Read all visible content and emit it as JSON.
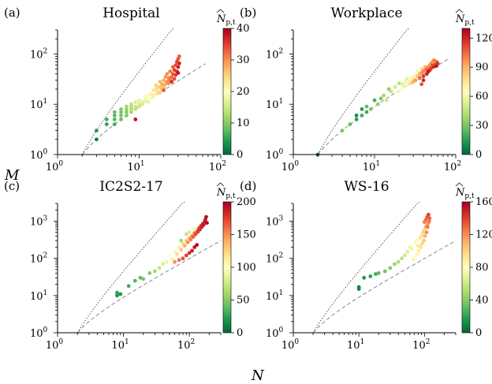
{
  "figure": {
    "xlabel": "N",
    "ylabel": "M",
    "colorbar_label_main": "N",
    "colorbar_label_sub": "p,t"
  },
  "chart_data": [
    {
      "type": "scatter",
      "panel": "(a)",
      "title": "Hospital",
      "xscale": "log",
      "yscale": "log",
      "xlim": [
        1,
        100
      ],
      "ylim": [
        1,
        300
      ],
      "xticks": [
        {
          "base": "10",
          "exp": "0"
        },
        {
          "base": "10",
          "exp": "1"
        },
        {
          "base": "10",
          "exp": "2"
        }
      ],
      "yticks": [
        {
          "base": "10",
          "exp": "0"
        },
        {
          "base": "10",
          "exp": "1"
        },
        {
          "base": "10",
          "exp": "2"
        }
      ],
      "colorbar": {
        "min": 0,
        "max": 40,
        "ticks": [
          "0",
          "10",
          "20",
          "30",
          "40"
        ]
      },
      "reference_lines": [
        {
          "style": "dotted",
          "description": "complete graph M = N(N-1)/2",
          "x_range": [
            2,
            27
          ]
        },
        {
          "style": "dashed",
          "description": "tree M = N-1",
          "x_range": [
            2,
            65
          ]
        }
      ],
      "points": [
        [
          3,
          2,
          2
        ],
        [
          3,
          3,
          4
        ],
        [
          4,
          4,
          5
        ],
        [
          4,
          5,
          6
        ],
        [
          5,
          4,
          6
        ],
        [
          5,
          5,
          7
        ],
        [
          5,
          6,
          7
        ],
        [
          5,
          7,
          8
        ],
        [
          6,
          5,
          8
        ],
        [
          6,
          6,
          9
        ],
        [
          6,
          7,
          9
        ],
        [
          6,
          8,
          10
        ],
        [
          7,
          6,
          10
        ],
        [
          7,
          7,
          10
        ],
        [
          7,
          8,
          11
        ],
        [
          7,
          9,
          12
        ],
        [
          8,
          7,
          12
        ],
        [
          8,
          8,
          13
        ],
        [
          8,
          9,
          13
        ],
        [
          8,
          10,
          14
        ],
        [
          9,
          5,
          38
        ],
        [
          9,
          8,
          14
        ],
        [
          9,
          9,
          15
        ],
        [
          9,
          11,
          16
        ],
        [
          10,
          9,
          15
        ],
        [
          10,
          10,
          16
        ],
        [
          10,
          12,
          17
        ],
        [
          11,
          10,
          16
        ],
        [
          11,
          11,
          17
        ],
        [
          12,
          12,
          18
        ],
        [
          12,
          14,
          19
        ],
        [
          13,
          11,
          18
        ],
        [
          13,
          13,
          20
        ],
        [
          13,
          15,
          20
        ],
        [
          14,
          14,
          20
        ],
        [
          14,
          16,
          22
        ],
        [
          15,
          15,
          22
        ],
        [
          15,
          19,
          23
        ],
        [
          16,
          16,
          22
        ],
        [
          16,
          20,
          24
        ],
        [
          16,
          24,
          25
        ],
        [
          17,
          18,
          24
        ],
        [
          17,
          22,
          25
        ],
        [
          18,
          17,
          25
        ],
        [
          18,
          22,
          26
        ],
        [
          18,
          28,
          27
        ],
        [
          19,
          20,
          26
        ],
        [
          19,
          25,
          28
        ],
        [
          20,
          22,
          27
        ],
        [
          20,
          30,
          28
        ],
        [
          20,
          19,
          33
        ],
        [
          21,
          25,
          28
        ],
        [
          21,
          35,
          29
        ],
        [
          22,
          28,
          30
        ],
        [
          22,
          40,
          30
        ],
        [
          23,
          26,
          30
        ],
        [
          23,
          33,
          31
        ],
        [
          24,
          30,
          31
        ],
        [
          24,
          45,
          32
        ],
        [
          25,
          35,
          32
        ],
        [
          25,
          28,
          36
        ],
        [
          26,
          40,
          33
        ],
        [
          26,
          55,
          33
        ],
        [
          27,
          32,
          34
        ],
        [
          27,
          48,
          35
        ],
        [
          28,
          38,
          35
        ],
        [
          28,
          60,
          34
        ],
        [
          29,
          45,
          36
        ],
        [
          29,
          70,
          35
        ],
        [
          30,
          55,
          37
        ],
        [
          30,
          80,
          34
        ],
        [
          30,
          42,
          38
        ],
        [
          31,
          65,
          37
        ],
        [
          31,
          90,
          33
        ]
      ]
    },
    {
      "type": "scatter",
      "panel": "(b)",
      "title": "Workplace",
      "xscale": "log",
      "yscale": "log",
      "xlim": [
        1,
        100
      ],
      "ylim": [
        1,
        300
      ],
      "xticks": [
        {
          "base": "10",
          "exp": "0"
        },
        {
          "base": "10",
          "exp": "1"
        },
        {
          "base": "10",
          "exp": "2"
        }
      ],
      "yticks": [
        {
          "base": "10",
          "exp": "0"
        },
        {
          "base": "10",
          "exp": "1"
        },
        {
          "base": "10",
          "exp": "2"
        }
      ],
      "colorbar": {
        "min": 0,
        "max": 130,
        "ticks": [
          "0",
          "30",
          "60",
          "90",
          "120"
        ]
      },
      "reference_lines": [
        {
          "style": "dotted",
          "description": "complete graph M = N(N-1)/2",
          "x_range": [
            2,
            27
          ]
        },
        {
          "style": "dashed",
          "description": "tree M = N-1",
          "x_range": [
            2,
            80
          ]
        }
      ],
      "points": [
        [
          2,
          1,
          5
        ],
        [
          4,
          3,
          30
        ],
        [
          5,
          4,
          25
        ],
        [
          6,
          5,
          15
        ],
        [
          6,
          6,
          10
        ],
        [
          7,
          6,
          20
        ],
        [
          7,
          8,
          15
        ],
        [
          8,
          7,
          20
        ],
        [
          8,
          9,
          25
        ],
        [
          9,
          8,
          30
        ],
        [
          10,
          12,
          20
        ],
        [
          11,
          10,
          35
        ],
        [
          12,
          13,
          30
        ],
        [
          13,
          15,
          40
        ],
        [
          14,
          12,
          50
        ],
        [
          15,
          20,
          35
        ],
        [
          16,
          18,
          45
        ],
        [
          18,
          22,
          50
        ],
        [
          20,
          18,
          60
        ],
        [
          20,
          26,
          45
        ],
        [
          22,
          25,
          55
        ],
        [
          22,
          21,
          65
        ],
        [
          24,
          28,
          60
        ],
        [
          25,
          24,
          70
        ],
        [
          25,
          32,
          55
        ],
        [
          27,
          30,
          70
        ],
        [
          28,
          26,
          80
        ],
        [
          28,
          35,
          65
        ],
        [
          30,
          33,
          75
        ],
        [
          30,
          28,
          90
        ],
        [
          32,
          38,
          70
        ],
        [
          32,
          30,
          95
        ],
        [
          34,
          36,
          85
        ],
        [
          34,
          45,
          70
        ],
        [
          36,
          40,
          90
        ],
        [
          36,
          33,
          105
        ],
        [
          38,
          42,
          95
        ],
        [
          38,
          50,
          80
        ],
        [
          40,
          45,
          100
        ],
        [
          40,
          36,
          115
        ],
        [
          42,
          48,
          100
        ],
        [
          42,
          55,
          90
        ],
        [
          44,
          50,
          105
        ],
        [
          44,
          40,
          120
        ],
        [
          46,
          55,
          100
        ],
        [
          46,
          45,
          125
        ],
        [
          48,
          60,
          95
        ],
        [
          48,
          48,
          120
        ],
        [
          50,
          65,
          100
        ],
        [
          50,
          52,
          115
        ],
        [
          52,
          60,
          110
        ],
        [
          52,
          70,
          95
        ],
        [
          54,
          56,
          120
        ],
        [
          54,
          75,
          100
        ],
        [
          56,
          62,
          110
        ],
        [
          58,
          70,
          105
        ],
        [
          58,
          58,
          125
        ],
        [
          60,
          65,
          115
        ],
        [
          38,
          25,
          110
        ],
        [
          40,
          30,
          120
        ]
      ]
    },
    {
      "type": "scatter",
      "panel": "(c)",
      "title": "IC2S2-17",
      "xscale": "log",
      "yscale": "log",
      "xlim": [
        1,
        300
      ],
      "ylim": [
        1,
        3000
      ],
      "xticks": [
        {
          "base": "10",
          "exp": "0"
        },
        {
          "base": "10",
          "exp": "1"
        },
        {
          "base": "10",
          "exp": "2"
        }
      ],
      "yticks": [
        {
          "base": "10",
          "exp": "0"
        },
        {
          "base": "10",
          "exp": "1"
        },
        {
          "base": "10",
          "exp": "2"
        },
        {
          "base": "10",
          "exp": "3"
        }
      ],
      "colorbar": {
        "min": 0,
        "max": 200,
        "ticks": [
          "0",
          "50",
          "100",
          "150",
          "200"
        ]
      },
      "reference_lines": [
        {
          "style": "dotted",
          "description": "complete graph M = N(N-1)/2",
          "x_range": [
            2,
            85
          ]
        },
        {
          "style": "dashed",
          "description": "tree M = N-1",
          "x_range": [
            2,
            300
          ]
        }
      ],
      "points": [
        [
          8,
          10,
          20
        ],
        [
          8,
          12,
          25
        ],
        [
          9,
          11,
          20
        ],
        [
          12,
          18,
          30
        ],
        [
          15,
          25,
          35
        ],
        [
          18,
          30,
          40
        ],
        [
          20,
          28,
          45
        ],
        [
          25,
          40,
          50
        ],
        [
          30,
          45,
          60
        ],
        [
          35,
          55,
          70
        ],
        [
          40,
          70,
          80
        ],
        [
          45,
          80,
          90
        ],
        [
          50,
          120,
          100
        ],
        [
          55,
          95,
          110
        ],
        [
          60,
          150,
          105
        ],
        [
          65,
          130,
          120
        ],
        [
          70,
          200,
          110
        ],
        [
          75,
          170,
          130
        ],
        [
          80,
          250,
          120
        ],
        [
          85,
          220,
          140
        ],
        [
          90,
          300,
          130
        ],
        [
          95,
          270,
          150
        ],
        [
          100,
          350,
          140
        ],
        [
          105,
          320,
          155
        ],
        [
          110,
          400,
          150
        ],
        [
          115,
          380,
          165
        ],
        [
          120,
          480,
          155
        ],
        [
          125,
          450,
          170
        ],
        [
          130,
          550,
          165
        ],
        [
          135,
          520,
          175
        ],
        [
          140,
          650,
          170
        ],
        [
          145,
          600,
          180
        ],
        [
          150,
          750,
          175
        ],
        [
          155,
          700,
          185
        ],
        [
          160,
          850,
          180
        ],
        [
          165,
          800,
          190
        ],
        [
          170,
          950,
          185
        ],
        [
          175,
          1100,
          190
        ],
        [
          180,
          1300,
          195
        ],
        [
          185,
          900,
          195
        ],
        [
          60,
          80,
          150
        ],
        [
          70,
          90,
          160
        ],
        [
          80,
          100,
          170
        ],
        [
          90,
          120,
          175
        ],
        [
          100,
          140,
          180
        ],
        [
          110,
          160,
          185
        ],
        [
          120,
          200,
          190
        ],
        [
          130,
          230,
          195
        ],
        [
          75,
          300,
          60
        ],
        [
          90,
          450,
          70
        ],
        [
          100,
          500,
          80
        ],
        [
          120,
          600,
          90
        ]
      ]
    },
    {
      "type": "scatter",
      "panel": "(d)",
      "title": "WS-16",
      "xscale": "log",
      "yscale": "log",
      "xlim": [
        1,
        300
      ],
      "ylim": [
        1,
        3000
      ],
      "xticks": [
        {
          "base": "10",
          "exp": "0"
        },
        {
          "base": "10",
          "exp": "1"
        },
        {
          "base": "10",
          "exp": "2"
        }
      ],
      "yticks": [
        {
          "base": "10",
          "exp": "0"
        },
        {
          "base": "10",
          "exp": "1"
        },
        {
          "base": "10",
          "exp": "2"
        },
        {
          "base": "10",
          "exp": "3"
        }
      ],
      "colorbar": {
        "min": 0,
        "max": 160,
        "ticks": [
          "0",
          "40",
          "80",
          "120",
          "160"
        ]
      },
      "reference_lines": [
        {
          "style": "dotted",
          "description": "complete graph M = N(N-1)/2",
          "x_range": [
            2,
            85
          ]
        },
        {
          "style": "dashed",
          "description": "tree M = N-1",
          "x_range": [
            2,
            300
          ]
        }
      ],
      "points": [
        [
          10,
          15,
          10
        ],
        [
          10,
          17,
          12
        ],
        [
          12,
          30,
          15
        ],
        [
          15,
          33,
          20
        ],
        [
          18,
          38,
          25
        ],
        [
          20,
          40,
          30
        ],
        [
          25,
          45,
          35
        ],
        [
          30,
          55,
          40
        ],
        [
          35,
          70,
          45
        ],
        [
          40,
          80,
          50
        ],
        [
          45,
          100,
          55
        ],
        [
          50,
          120,
          60
        ],
        [
          55,
          150,
          65
        ],
        [
          60,
          200,
          70
        ],
        [
          65,
          180,
          75
        ],
        [
          70,
          250,
          80
        ],
        [
          75,
          300,
          85
        ],
        [
          80,
          220,
          90
        ],
        [
          85,
          350,
          90
        ],
        [
          90,
          400,
          95
        ],
        [
          95,
          500,
          100
        ],
        [
          100,
          600,
          100
        ],
        [
          105,
          700,
          110
        ],
        [
          110,
          800,
          115
        ],
        [
          115,
          900,
          120
        ],
        [
          118,
          1000,
          125
        ],
        [
          120,
          1200,
          130
        ],
        [
          112,
          700,
          125
        ],
        [
          108,
          500,
          120
        ],
        [
          102,
          400,
          110
        ],
        [
          98,
          300,
          105
        ],
        [
          92,
          250,
          100
        ],
        [
          88,
          200,
          95
        ],
        [
          82,
          160,
          90
        ],
        [
          78,
          130,
          85
        ],
        [
          72,
          110,
          80
        ],
        [
          68,
          95,
          75
        ],
        [
          115,
          1500,
          140
        ],
        [
          110,
          1300,
          135
        ],
        [
          105,
          1100,
          130
        ],
        [
          100,
          950,
          125
        ]
      ]
    }
  ]
}
